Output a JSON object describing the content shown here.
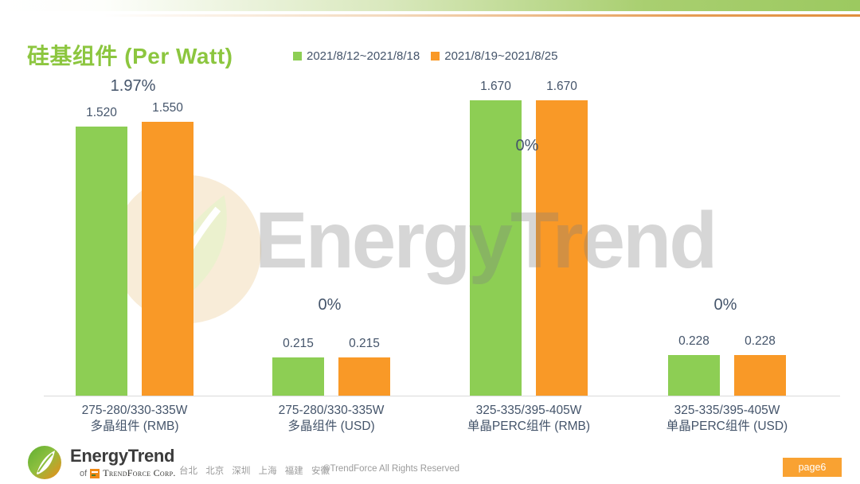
{
  "slide": {
    "title": "硅基组件 (Per Watt)",
    "page_badge": "page6"
  },
  "legend": {
    "items": [
      {
        "label": "2021/8/12~2021/8/18",
        "color": "#8DCE54"
      },
      {
        "label": "2021/8/19~2021/8/25",
        "color": "#F99927"
      }
    ]
  },
  "watermark": {
    "text": "EnergyTrend"
  },
  "chart_data": {
    "type": "bar",
    "title": "硅基组件 (Per Watt)",
    "categories": [
      [
        "275-280/330-335W",
        "多晶组件 (RMB)"
      ],
      [
        "275-280/330-335W",
        "多晶组件 (USD)"
      ],
      [
        "325-335/395-405W",
        "单晶PERC组件 (RMB)"
      ],
      [
        "325-335/395-405W",
        "单晶PERC组件 (USD)"
      ]
    ],
    "series": [
      {
        "name": "2021/8/12~2021/8/18",
        "color": "#8DCE54",
        "values": [
          1.52,
          0.215,
          1.67,
          0.228
        ]
      },
      {
        "name": "2021/8/19~2021/8/25",
        "color": "#F99927",
        "values": [
          1.55,
          0.215,
          1.67,
          0.228
        ]
      }
    ],
    "change_labels": [
      "1.97%",
      "0%",
      "0%",
      "0%"
    ],
    "value_decimals": 3,
    "ylim": [
      0,
      1.8
    ],
    "grid": false,
    "legend_position": "top-center",
    "value_label_color": "#44546A",
    "axis_line_color": "#D9D9D9"
  },
  "footer": {
    "brand": "EnergyTrend",
    "sub_prefix": "of",
    "sub_brand": "TrendForce Corp.",
    "cities": "台北 北京 深圳 上海 福建 安徽",
    "copyright": "©TrendForce All Rights Reserved"
  }
}
